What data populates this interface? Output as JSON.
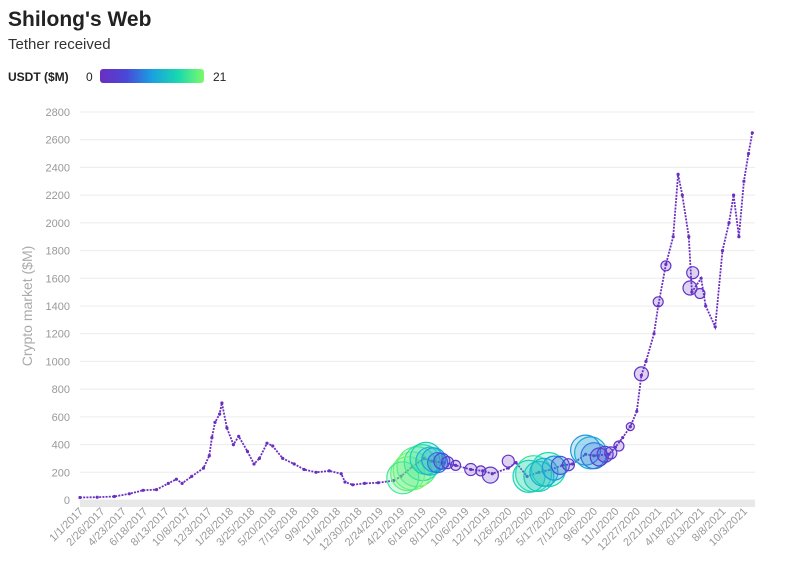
{
  "title": "Shilong's Web",
  "subtitle": "Tether received",
  "legend": {
    "label": "USDT ($M)",
    "min": "0",
    "max": "21",
    "color_stops": [
      "#6a2fc0",
      "#4a47d8",
      "#1aa0e0",
      "#19d8b0",
      "#7df96a"
    ]
  },
  "chart_data": {
    "type": "scatter",
    "ylabel": "Crypto market ($M)",
    "ylim": [
      0,
      2800
    ],
    "y_ticks": [
      0,
      200,
      400,
      600,
      800,
      1000,
      1200,
      1400,
      1600,
      1800,
      2000,
      2200,
      2400,
      2600,
      2800
    ],
    "x_range": [
      "2017-01-01",
      "2021-11-01"
    ],
    "x_tick_labels": [
      "1/1/2017",
      "2/26/2017",
      "4/23/2017",
      "6/18/2017",
      "8/13/2017",
      "10/8/2017",
      "12/3/2017",
      "1/28/2018",
      "3/25/2018",
      "5/20/2018",
      "7/15/2018",
      "9/9/2018",
      "11/4/2018",
      "12/30/2018",
      "2/24/2019",
      "4/21/2019",
      "6/16/2019",
      "8/11/2019",
      "10/6/2019",
      "12/1/2019",
      "1/26/2020",
      "3/22/2020",
      "5/17/2020",
      "7/12/2020",
      "9/6/2020",
      "11/1/2020",
      "12/27/2020",
      "2/21/2021",
      "4/18/2021",
      "6/13/2021",
      "8/8/2021",
      "10/3/2021"
    ],
    "grid": true,
    "color_scale": {
      "min": 0,
      "max": 21
    },
    "market_series": [
      [
        "2017-01-01",
        18
      ],
      [
        "2017-02-15",
        20
      ],
      [
        "2017-04-01",
        25
      ],
      [
        "2017-05-10",
        45
      ],
      [
        "2017-06-15",
        70
      ],
      [
        "2017-07-20",
        75
      ],
      [
        "2017-08-20",
        120
      ],
      [
        "2017-09-10",
        150
      ],
      [
        "2017-09-25",
        120
      ],
      [
        "2017-10-20",
        170
      ],
      [
        "2017-11-20",
        230
      ],
      [
        "2017-12-05",
        320
      ],
      [
        "2017-12-12",
        450
      ],
      [
        "2017-12-20",
        560
      ],
      [
        "2018-01-01",
        620
      ],
      [
        "2018-01-07",
        700
      ],
      [
        "2018-01-20",
        520
      ],
      [
        "2018-02-06",
        400
      ],
      [
        "2018-02-20",
        460
      ],
      [
        "2018-03-15",
        350
      ],
      [
        "2018-04-01",
        260
      ],
      [
        "2018-04-15",
        300
      ],
      [
        "2018-05-05",
        410
      ],
      [
        "2018-05-20",
        390
      ],
      [
        "2018-06-15",
        300
      ],
      [
        "2018-07-15",
        260
      ],
      [
        "2018-08-10",
        220
      ],
      [
        "2018-09-10",
        200
      ],
      [
        "2018-10-15",
        210
      ],
      [
        "2018-11-15",
        190
      ],
      [
        "2018-11-25",
        130
      ],
      [
        "2018-12-15",
        110
      ],
      [
        "2019-01-15",
        120
      ],
      [
        "2019-02-20",
        125
      ],
      [
        "2019-04-01",
        140
      ],
      [
        "2019-04-20",
        170
      ],
      [
        "2019-05-20",
        240
      ],
      [
        "2019-06-20",
        300
      ],
      [
        "2019-07-10",
        280
      ],
      [
        "2019-08-10",
        270
      ],
      [
        "2019-09-10",
        250
      ],
      [
        "2019-10-20",
        220
      ],
      [
        "2019-11-20",
        210
      ],
      [
        "2019-12-15",
        190
      ],
      [
        "2020-01-26",
        230
      ],
      [
        "2020-02-15",
        270
      ],
      [
        "2020-03-15",
        170
      ],
      [
        "2020-04-15",
        200
      ],
      [
        "2020-05-17",
        220
      ],
      [
        "2020-06-15",
        250
      ],
      [
        "2020-07-12",
        260
      ],
      [
        "2020-08-15",
        330
      ],
      [
        "2020-09-06",
        320
      ],
      [
        "2020-10-15",
        330
      ],
      [
        "2020-11-01",
        380
      ],
      [
        "2020-11-20",
        450
      ],
      [
        "2020-12-10",
        530
      ],
      [
        "2020-12-27",
        640
      ],
      [
        "2021-01-08",
        900
      ],
      [
        "2021-01-20",
        1000
      ],
      [
        "2021-02-10",
        1200
      ],
      [
        "2021-02-21",
        1400
      ],
      [
        "2021-03-13",
        1700
      ],
      [
        "2021-04-01",
        1900
      ],
      [
        "2021-04-14",
        2350
      ],
      [
        "2021-04-25",
        2200
      ],
      [
        "2021-05-12",
        1900
      ],
      [
        "2021-05-20",
        1500
      ],
      [
        "2021-06-13",
        1600
      ],
      [
        "2021-06-25",
        1400
      ],
      [
        "2021-07-20",
        1250
      ],
      [
        "2021-08-08",
        1800
      ],
      [
        "2021-08-25",
        2000
      ],
      [
        "2021-09-06",
        2200
      ],
      [
        "2021-09-20",
        1900
      ],
      [
        "2021-10-03",
        2300
      ],
      [
        "2021-10-15",
        2500
      ],
      [
        "2021-10-25",
        2650
      ]
    ],
    "bubbles": [
      [
        "2019-04-25",
        160,
        18,
        16
      ],
      [
        "2019-05-08",
        190,
        20,
        17
      ],
      [
        "2019-05-20",
        210,
        21,
        19
      ],
      [
        "2019-06-01",
        240,
        19,
        20
      ],
      [
        "2019-06-15",
        270,
        17,
        18
      ],
      [
        "2019-06-25",
        300,
        15,
        16
      ],
      [
        "2019-07-05",
        280,
        13,
        14
      ],
      [
        "2019-07-15",
        290,
        11,
        12
      ],
      [
        "2019-07-25",
        270,
        8,
        10
      ],
      [
        "2019-08-05",
        280,
        5,
        8
      ],
      [
        "2019-08-20",
        270,
        3,
        6
      ],
      [
        "2019-09-10",
        250,
        2,
        5
      ],
      [
        "2019-10-20",
        220,
        1,
        6
      ],
      [
        "2019-11-15",
        210,
        1,
        5
      ],
      [
        "2019-12-10",
        180,
        2,
        8
      ],
      [
        "2020-01-26",
        280,
        1,
        6
      ],
      [
        "2020-03-20",
        170,
        15,
        16
      ],
      [
        "2020-04-01",
        190,
        17,
        18
      ],
      [
        "2020-04-15",
        170,
        14,
        15
      ],
      [
        "2020-04-28",
        200,
        12,
        14
      ],
      [
        "2020-05-10",
        220,
        16,
        17
      ],
      [
        "2020-05-25",
        230,
        10,
        12
      ],
      [
        "2020-06-10",
        250,
        6,
        9
      ],
      [
        "2020-07-01",
        255,
        3,
        6
      ],
      [
        "2020-08-15",
        360,
        10,
        15
      ],
      [
        "2020-08-28",
        340,
        12,
        16
      ],
      [
        "2020-09-06",
        320,
        8,
        13
      ],
      [
        "2020-09-20",
        310,
        4,
        9
      ],
      [
        "2020-10-05",
        330,
        3,
        8
      ],
      [
        "2020-10-20",
        340,
        2,
        6
      ],
      [
        "2020-11-10",
        390,
        1,
        5
      ],
      [
        "2020-12-10",
        530,
        1,
        4
      ],
      [
        "2021-01-08",
        910,
        1,
        7
      ],
      [
        "2021-02-21",
        1430,
        1,
        5
      ],
      [
        "2021-03-13",
        1690,
        1,
        5
      ],
      [
        "2021-05-15",
        1530,
        1,
        7
      ],
      [
        "2021-05-22",
        1640,
        1,
        6
      ],
      [
        "2021-06-10",
        1490,
        1,
        5
      ]
    ]
  }
}
